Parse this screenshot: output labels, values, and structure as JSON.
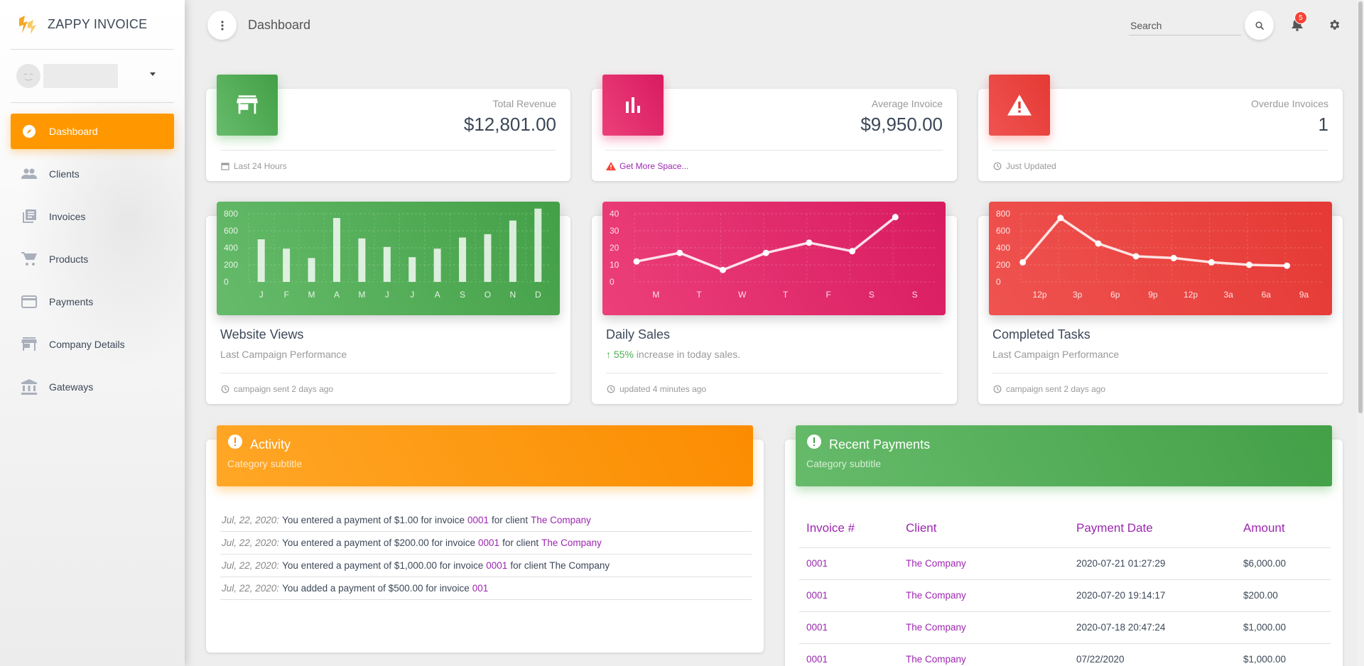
{
  "app": {
    "name": "ZAPPY INVOICE",
    "brand_color": "#ff9800"
  },
  "sidebar": {
    "items": [
      {
        "label": "Dashboard",
        "icon": "compass-icon",
        "active": true
      },
      {
        "label": "Clients",
        "icon": "people-icon"
      },
      {
        "label": "Invoices",
        "icon": "library-books-icon"
      },
      {
        "label": "Products",
        "icon": "shopping-cart-icon"
      },
      {
        "label": "Payments",
        "icon": "credit-card-icon"
      },
      {
        "label": "Company Details",
        "icon": "store-icon"
      },
      {
        "label": "Gateways",
        "icon": "bank-icon"
      }
    ]
  },
  "header": {
    "title": "Dashboard",
    "search_placeholder": "Search",
    "notification_count": "5"
  },
  "stats": [
    {
      "category": "Total Revenue",
      "value": "$12,801.00",
      "footer": "Last 24 Hours",
      "color": "#4caf50",
      "icon": "store-icon",
      "footer_icon": "calendar-icon"
    },
    {
      "category": "Average Invoice",
      "value": "$9,950.00",
      "footer": "Get More Space...",
      "color": "#e91e63",
      "icon": "bar-chart-icon",
      "footer_icon": "warning-icon"
    },
    {
      "category": "Overdue Invoices",
      "value": "1",
      "footer": "Just Updated",
      "color": "#f44336",
      "icon": "warning-icon",
      "footer_icon": "update-icon"
    }
  ],
  "charts": [
    {
      "title": "Website Views",
      "subtitle": "Last Campaign Performance",
      "footer": "campaign sent 2 days ago"
    },
    {
      "title": "Daily Sales",
      "subtitle_pct": "55%",
      "subtitle_rest": "increase in today sales.",
      "footer": "updated 4 minutes ago"
    },
    {
      "title": "Completed Tasks",
      "subtitle": "Last Campaign Performance",
      "footer": "campaign sent 2 days ago"
    }
  ],
  "chart_data": [
    {
      "type": "bar",
      "categories": [
        "J",
        "F",
        "M",
        "A",
        "M",
        "J",
        "J",
        "A",
        "S",
        "O",
        "N",
        "D"
      ],
      "values": [
        500,
        390,
        280,
        750,
        510,
        410,
        290,
        390,
        520,
        560,
        720,
        860
      ],
      "ylim": [
        0,
        800
      ],
      "yticks": [
        0,
        200,
        400,
        600,
        800
      ],
      "color": "#4caf50"
    },
    {
      "type": "line",
      "categories": [
        "M",
        "T",
        "W",
        "T",
        "F",
        "S",
        "S"
      ],
      "values": [
        12,
        17,
        7,
        17,
        23,
        18,
        38
      ],
      "ylim": [
        0,
        40
      ],
      "yticks": [
        0,
        10,
        20,
        30,
        40
      ],
      "color": "#e91e63"
    },
    {
      "type": "line",
      "categories": [
        "12p",
        "3p",
        "6p",
        "9p",
        "12p",
        "3a",
        "6a",
        "9a"
      ],
      "values": [
        230,
        750,
        450,
        300,
        280,
        230,
        200,
        190
      ],
      "ylim": [
        0,
        800
      ],
      "yticks": [
        0,
        200,
        400,
        600,
        800
      ],
      "color": "#f44336"
    }
  ],
  "activity": {
    "title": "Activity",
    "subtitle": "Category subtitle",
    "rows": [
      {
        "date": "Jul, 22, 2020:",
        "text": "You entered a payment of $1.00 for invoice",
        "invoice": "0001",
        "mid": "for client",
        "client": "The Company",
        "client_link": true
      },
      {
        "date": "Jul, 22, 2020:",
        "text": "You entered a payment of $200.00 for invoice",
        "invoice": "0001",
        "mid": "for client",
        "client": "The Company",
        "client_link": true
      },
      {
        "date": "Jul, 22, 2020:",
        "text": "You entered a payment of $1,000.00 for invoice",
        "invoice": "0001",
        "mid": "for client",
        "client": "The Company",
        "client_link": false
      },
      {
        "date": "Jul, 22, 2020:",
        "text": "You added a payment of $500.00 for invoice",
        "invoice": "001",
        "mid": "",
        "client": "",
        "client_link": false
      }
    ]
  },
  "payments": {
    "title": "Recent Payments",
    "subtitle": "Category subtitle",
    "columns": [
      "Invoice #",
      "Client",
      "Payment Date",
      "Amount"
    ],
    "rows": [
      [
        "0001",
        "The Company",
        "2020-07-21 01:27:29",
        "$6,000.00"
      ],
      [
        "0001",
        "The Company",
        "2020-07-20 19:14:17",
        "$200.00"
      ],
      [
        "0001",
        "The Company",
        "2020-07-18 20:47:24",
        "$1,000.00"
      ],
      [
        "0001",
        "The Company",
        "07/22/2020",
        "$1,000.00"
      ]
    ]
  }
}
